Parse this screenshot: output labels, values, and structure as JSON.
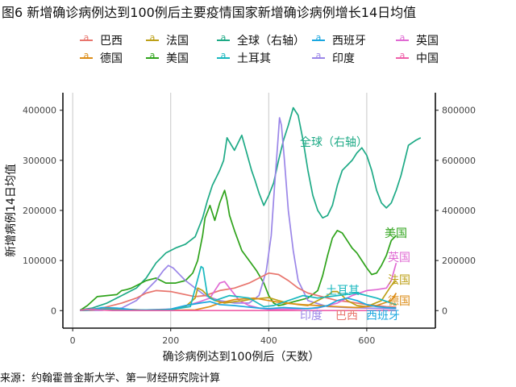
{
  "page": {
    "title": "图6 新增确诊病例达到100例后主要疫情国家新增确诊病例增长14日均值",
    "source": "来源：约翰霍普金斯大学、第一财经研究院计算"
  },
  "chart_data": {
    "type": "line",
    "title": "图6 新增确诊病例达到100例后主要疫情国家新增确诊病例增长14日均值",
    "xlabel": "确诊病例达到100例后（天数）",
    "ylabel": "新增病例14日均值",
    "y2label": "",
    "xlim": [
      -20,
      740
    ],
    "ylim": [
      -35000,
      435000
    ],
    "y2lim": [
      -70000,
      870000
    ],
    "x_ticks": [
      0,
      200,
      400,
      600
    ],
    "y_ticks": [
      0,
      100000,
      200000,
      300000,
      400000
    ],
    "y2_ticks": [
      0,
      200000,
      400000,
      600000,
      800000
    ],
    "grid": "vertical",
    "legend_position": "top",
    "legend": [
      "巴西",
      "法国",
      "全球（右轴）",
      "西班牙",
      "英国",
      "德国",
      "美国",
      "土耳其",
      "印度",
      "中国"
    ],
    "series": [
      {
        "name": "全球（右轴）",
        "color": "#1eaa86",
        "axis": "right",
        "label": "全球（右轴）",
        "x": [
          15,
          40,
          70,
          100,
          130,
          150,
          170,
          190,
          210,
          230,
          250,
          265,
          275,
          285,
          295,
          300,
          308,
          315,
          330,
          345,
          355,
          365,
          372,
          380,
          390,
          400,
          410,
          420,
          430,
          440,
          450,
          460,
          470,
          480,
          490,
          500,
          510,
          520,
          530,
          540,
          550,
          560,
          570,
          580,
          590,
          600,
          610,
          620,
          630,
          640,
          650,
          660,
          670,
          685,
          700,
          710
        ],
        "y": [
          3000,
          10000,
          30000,
          60000,
          90000,
          130000,
          190000,
          230000,
          250000,
          265000,
          295000,
          370000,
          440000,
          500000,
          540000,
          560000,
          600000,
          690000,
          640000,
          700000,
          630000,
          560000,
          520000,
          470000,
          420000,
          460000,
          510000,
          600000,
          680000,
          740000,
          810000,
          780000,
          680000,
          560000,
          460000,
          400000,
          370000,
          380000,
          420000,
          500000,
          560000,
          580000,
          600000,
          630000,
          650000,
          620000,
          560000,
          480000,
          430000,
          410000,
          430000,
          480000,
          540000,
          660000,
          680000,
          690000
        ]
      },
      {
        "name": "美国",
        "color": "#2fa31b",
        "axis": "left",
        "label": "美国",
        "x": [
          15,
          30,
          50,
          70,
          90,
          100,
          110,
          120,
          130,
          140,
          150,
          170,
          190,
          210,
          230,
          245,
          255,
          265,
          270,
          280,
          290,
          300,
          310,
          315,
          320,
          330,
          345,
          360,
          375,
          390,
          400,
          410,
          420,
          430,
          440,
          460,
          480,
          500,
          510,
          520,
          530,
          540,
          550,
          560,
          570,
          580,
          590,
          600,
          610,
          620,
          630,
          640,
          650,
          660
        ],
        "y": [
          500,
          10000,
          28000,
          30000,
          32000,
          40000,
          42000,
          45000,
          50000,
          55000,
          60000,
          65000,
          55000,
          55000,
          60000,
          75000,
          100000,
          150000,
          185000,
          210000,
          180000,
          215000,
          240000,
          220000,
          190000,
          160000,
          120000,
          100000,
          80000,
          55000,
          30000,
          15000,
          10000,
          12000,
          15000,
          20000,
          25000,
          40000,
          70000,
          110000,
          145000,
          160000,
          155000,
          140000,
          125000,
          115000,
          100000,
          85000,
          72000,
          75000,
          90000,
          110000,
          140000,
          150000
        ]
      },
      {
        "name": "印度",
        "color": "#9b86e8",
        "axis": "left",
        "label": "印度",
        "x": [
          15,
          60,
          100,
          130,
          150,
          170,
          185,
          195,
          205,
          215,
          230,
          250,
          270,
          300,
          330,
          360,
          380,
          395,
          405,
          412,
          418,
          422,
          426,
          432,
          440,
          450,
          460,
          480,
          520,
          560,
          600,
          640,
          660
        ],
        "y": [
          100,
          500,
          5000,
          20000,
          40000,
          60000,
          80000,
          90000,
          85000,
          75000,
          60000,
          45000,
          30000,
          20000,
          15000,
          15000,
          30000,
          80000,
          150000,
          250000,
          330000,
          385000,
          370000,
          300000,
          200000,
          120000,
          60000,
          20000,
          8000,
          6000,
          5000,
          4000,
          4000
        ]
      },
      {
        "name": "巴西",
        "color": "#e8756d",
        "axis": "left",
        "label": "巴西",
        "x": [
          15,
          60,
          100,
          130,
          150,
          170,
          200,
          230,
          250,
          270,
          300,
          330,
          360,
          380,
          400,
          420,
          440,
          460,
          480,
          500,
          520,
          540,
          560,
          580,
          600,
          620,
          640,
          660
        ],
        "y": [
          200,
          5000,
          15000,
          25000,
          35000,
          40000,
          38000,
          32000,
          28000,
          30000,
          40000,
          45000,
          55000,
          65000,
          75000,
          72000,
          60000,
          45000,
          35000,
          30000,
          25000,
          20000,
          18000,
          15000,
          12000,
          10000,
          8000,
          7000
        ]
      },
      {
        "name": "英国",
        "color": "#e06ad3",
        "axis": "left",
        "label": "英国",
        "x": [
          15,
          40,
          60,
          80,
          100,
          150,
          200,
          240,
          260,
          280,
          290,
          300,
          310,
          320,
          340,
          360,
          380,
          400,
          450,
          500,
          540,
          570,
          600,
          620,
          640,
          650,
          660
        ],
        "y": [
          200,
          3000,
          5000,
          4000,
          2000,
          1500,
          3000,
          12000,
          18000,
          25000,
          40000,
          55000,
          58000,
          45000,
          20000,
          10000,
          5000,
          2500,
          3000,
          5000,
          15000,
          30000,
          40000,
          42000,
          45000,
          60000,
          95000
        ]
      },
      {
        "name": "法国",
        "color": "#bda018",
        "axis": "left",
        "label": "法国",
        "x": [
          15,
          50,
          80,
          110,
          150,
          200,
          230,
          250,
          255,
          265,
          270,
          290,
          310,
          330,
          350,
          360,
          380,
          400,
          420,
          440,
          460,
          480,
          500,
          520,
          530,
          540,
          550,
          560,
          570,
          580,
          600,
          630,
          650,
          660
        ],
        "y": [
          100,
          2000,
          4000,
          2500,
          1000,
          2000,
          8000,
          25000,
          45000,
          40000,
          35000,
          20000,
          15000,
          18000,
          20000,
          22000,
          24000,
          26000,
          20000,
          15000,
          12000,
          10000,
          20000,
          30000,
          38000,
          38000,
          30000,
          20000,
          15000,
          10000,
          8000,
          20000,
          50000,
          60000
        ]
      },
      {
        "name": "德国",
        "color": "#dc8d18",
        "axis": "left",
        "label": "德国",
        "x": [
          15,
          50,
          80,
          110,
          150,
          200,
          250,
          280,
          300,
          330,
          370,
          400,
          430,
          470,
          500,
          540,
          580,
          620,
          650,
          660
        ],
        "y": [
          100,
          2000,
          4000,
          2500,
          800,
          500,
          1500,
          8000,
          15000,
          22000,
          25000,
          20000,
          15000,
          12000,
          10000,
          8000,
          6000,
          10000,
          20000,
          35000
        ]
      },
      {
        "name": "西班牙",
        "color": "#1aa7e0",
        "axis": "left",
        "label": "西班牙",
        "x": [
          15,
          40,
          60,
          90,
          130,
          170,
          200,
          230,
          260,
          280,
          300,
          330,
          350,
          380,
          400,
          430,
          450,
          480,
          500,
          520,
          540,
          560,
          580,
          600,
          620,
          640,
          660
        ],
        "y": [
          200,
          2000,
          6000,
          5000,
          1000,
          800,
          3000,
          10000,
          15000,
          18000,
          12000,
          10000,
          8000,
          5000,
          4000,
          6000,
          5000,
          4000,
          6000,
          10000,
          20000,
          25000,
          20000,
          12000,
          8000,
          6000,
          5000
        ]
      },
      {
        "name": "土耳其",
        "color": "#19b8bf",
        "axis": "left",
        "label": "土耳其",
        "x": [
          15,
          30,
          50,
          70,
          100,
          150,
          200,
          240,
          262,
          266,
          270,
          275,
          280,
          290,
          320,
          360,
          390,
          410,
          440,
          470,
          500,
          540,
          580,
          620,
          650,
          660
        ],
        "y": [
          500,
          2000,
          3000,
          2000,
          1000,
          1500,
          2000,
          8000,
          88000,
          85000,
          60000,
          30000,
          25000,
          20000,
          30000,
          25000,
          8000,
          10000,
          20000,
          30000,
          25000,
          30000,
          35000,
          25000,
          15000,
          12000
        ]
      },
      {
        "name": "中国",
        "color": "#ef5fa9",
        "axis": "left",
        "label": "中国",
        "x": [
          15,
          30,
          50,
          80,
          120,
          200,
          300,
          400,
          500,
          600,
          660
        ],
        "y": [
          500,
          2500,
          1500,
          300,
          100,
          100,
          50,
          50,
          50,
          80,
          100
        ]
      }
    ],
    "annotations": [
      {
        "text": "全球（右轴）",
        "color": "#1eaa86"
      },
      {
        "text": "美国",
        "color": "#2fa31b"
      },
      {
        "text": "英国",
        "color": "#e06ad3"
      },
      {
        "text": "法国",
        "color": "#bda018"
      },
      {
        "text": "德国",
        "color": "#dc8d18"
      },
      {
        "text": "土耳其",
        "color": "#19b8bf"
      },
      {
        "text": "印度",
        "color": "#9b86e8"
      },
      {
        "text": "巴西",
        "color": "#e8756d"
      },
      {
        "text": "西班牙",
        "color": "#1aa7e0"
      }
    ]
  }
}
